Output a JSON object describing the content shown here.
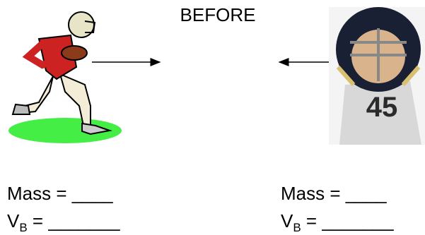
{
  "title": "BEFORE",
  "left": {
    "mass": "Mass = ____",
    "velocity_symbol": "V",
    "velocity_subscript": "B",
    "velocity_blank": " = _______"
  },
  "right": {
    "mass": "Mass = ____",
    "velocity_symbol": "V",
    "velocity_subscript": "B",
    "velocity_blank": " = _______"
  }
}
